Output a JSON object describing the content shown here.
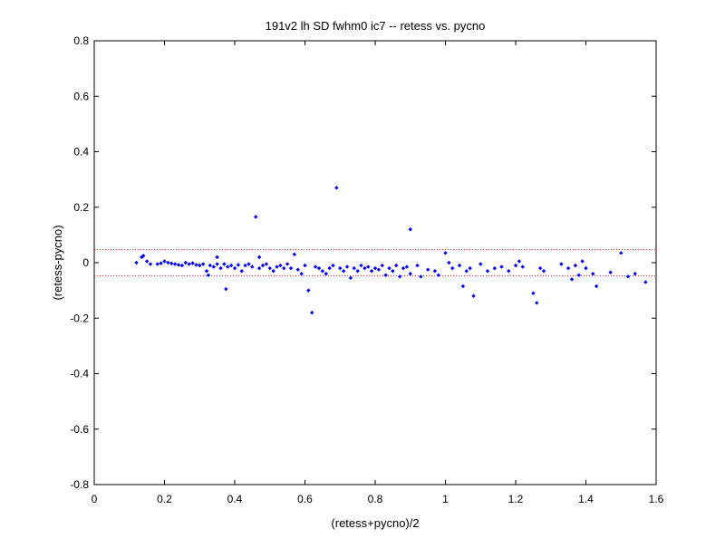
{
  "chart_data": {
    "type": "scatter",
    "title": "191v2 lh SD fwhm0 ic7 -- retess vs. pycno",
    "xlabel": "(retess+pycno)/2",
    "ylabel": "(retess-pycno)",
    "xlim": [
      0,
      1.6
    ],
    "ylim": [
      -0.8,
      0.8
    ],
    "xticks": [
      0,
      0.2,
      0.4,
      0.6,
      0.8,
      1,
      1.2,
      1.4,
      1.6
    ],
    "xtick_labels": [
      "0",
      "0.2",
      "0.4",
      "0.6",
      "0.8",
      "1",
      "1.2",
      "1.4",
      "1.6"
    ],
    "yticks": [
      -0.8,
      -0.6,
      -0.4,
      -0.2,
      0,
      0.2,
      0.4,
      0.6,
      0.8
    ],
    "ytick_labels": [
      "-0.8",
      "-0.6",
      "-0.4",
      "-0.2",
      "0",
      "0.2",
      "0.4",
      "0.6",
      "0.8"
    ],
    "grid": false,
    "marker_color": "#0000ff",
    "reference_line_color": "#ff0000",
    "reference_lines_y": [
      0.047,
      -0.047
    ],
    "points": [
      [
        0.12,
        0.0
      ],
      [
        0.135,
        0.02
      ],
      [
        0.14,
        0.025
      ],
      [
        0.15,
        0.005
      ],
      [
        0.16,
        -0.005
      ],
      [
        0.18,
        -0.005
      ],
      [
        0.19,
        -0.002
      ],
      [
        0.2,
        0.005
      ],
      [
        0.21,
        0.0
      ],
      [
        0.22,
        -0.003
      ],
      [
        0.23,
        -0.005
      ],
      [
        0.24,
        -0.008
      ],
      [
        0.25,
        -0.01
      ],
      [
        0.26,
        0.0
      ],
      [
        0.27,
        -0.005
      ],
      [
        0.28,
        -0.002
      ],
      [
        0.29,
        -0.008
      ],
      [
        0.3,
        -0.01
      ],
      [
        0.31,
        -0.005
      ],
      [
        0.32,
        -0.03
      ],
      [
        0.325,
        -0.045
      ],
      [
        0.33,
        -0.01
      ],
      [
        0.34,
        -0.015
      ],
      [
        0.35,
        -0.005
      ],
      [
        0.35,
        0.02
      ],
      [
        0.36,
        -0.02
      ],
      [
        0.37,
        -0.005
      ],
      [
        0.375,
        -0.095
      ],
      [
        0.38,
        -0.015
      ],
      [
        0.39,
        -0.01
      ],
      [
        0.4,
        -0.02
      ],
      [
        0.41,
        -0.008
      ],
      [
        0.42,
        -0.03
      ],
      [
        0.43,
        -0.01
      ],
      [
        0.44,
        -0.005
      ],
      [
        0.45,
        -0.015
      ],
      [
        0.46,
        0.165
      ],
      [
        0.47,
        0.02
      ],
      [
        0.47,
        -0.02
      ],
      [
        0.48,
        -0.01
      ],
      [
        0.49,
        -0.005
      ],
      [
        0.5,
        -0.02
      ],
      [
        0.51,
        -0.03
      ],
      [
        0.52,
        -0.015
      ],
      [
        0.53,
        -0.01
      ],
      [
        0.54,
        -0.02
      ],
      [
        0.55,
        -0.005
      ],
      [
        0.56,
        -0.02
      ],
      [
        0.57,
        0.03
      ],
      [
        0.58,
        -0.025
      ],
      [
        0.59,
        -0.04
      ],
      [
        0.6,
        -0.01
      ],
      [
        0.61,
        -0.1
      ],
      [
        0.62,
        -0.18
      ],
      [
        0.63,
        -0.015
      ],
      [
        0.64,
        -0.02
      ],
      [
        0.65,
        -0.03
      ],
      [
        0.66,
        -0.04
      ],
      [
        0.67,
        -0.02
      ],
      [
        0.68,
        -0.01
      ],
      [
        0.69,
        0.27
      ],
      [
        0.7,
        -0.02
      ],
      [
        0.71,
        -0.03
      ],
      [
        0.72,
        -0.015
      ],
      [
        0.73,
        -0.055
      ],
      [
        0.74,
        -0.02
      ],
      [
        0.75,
        -0.03
      ],
      [
        0.76,
        -0.01
      ],
      [
        0.77,
        -0.02
      ],
      [
        0.78,
        -0.015
      ],
      [
        0.79,
        -0.03
      ],
      [
        0.8,
        -0.02
      ],
      [
        0.81,
        -0.025
      ],
      [
        0.82,
        -0.01
      ],
      [
        0.83,
        -0.045
      ],
      [
        0.84,
        -0.02
      ],
      [
        0.85,
        -0.03
      ],
      [
        0.86,
        -0.01
      ],
      [
        0.87,
        -0.05
      ],
      [
        0.88,
        -0.02
      ],
      [
        0.89,
        -0.015
      ],
      [
        0.9,
        0.12
      ],
      [
        0.9,
        -0.04
      ],
      [
        0.92,
        -0.01
      ],
      [
        0.93,
        -0.05
      ],
      [
        0.95,
        -0.025
      ],
      [
        0.97,
        -0.03
      ],
      [
        0.98,
        -0.045
      ],
      [
        1.0,
        0.035
      ],
      [
        1.01,
        0.0
      ],
      [
        1.02,
        -0.02
      ],
      [
        1.04,
        -0.01
      ],
      [
        1.05,
        -0.085
      ],
      [
        1.06,
        -0.03
      ],
      [
        1.07,
        -0.02
      ],
      [
        1.08,
        -0.12
      ],
      [
        1.1,
        -0.005
      ],
      [
        1.12,
        -0.03
      ],
      [
        1.14,
        -0.02
      ],
      [
        1.16,
        -0.015
      ],
      [
        1.18,
        -0.03
      ],
      [
        1.2,
        -0.01
      ],
      [
        1.21,
        0.005
      ],
      [
        1.22,
        -0.015
      ],
      [
        1.25,
        -0.11
      ],
      [
        1.26,
        -0.145
      ],
      [
        1.27,
        -0.02
      ],
      [
        1.28,
        -0.03
      ],
      [
        1.33,
        -0.005
      ],
      [
        1.35,
        -0.02
      ],
      [
        1.36,
        -0.06
      ],
      [
        1.37,
        -0.01
      ],
      [
        1.38,
        -0.045
      ],
      [
        1.39,
        0.005
      ],
      [
        1.4,
        -0.02
      ],
      [
        1.42,
        -0.04
      ],
      [
        1.43,
        -0.085
      ],
      [
        1.47,
        -0.035
      ],
      [
        1.5,
        0.035
      ],
      [
        1.52,
        -0.05
      ],
      [
        1.54,
        -0.04
      ],
      [
        1.57,
        -0.07
      ]
    ]
  }
}
